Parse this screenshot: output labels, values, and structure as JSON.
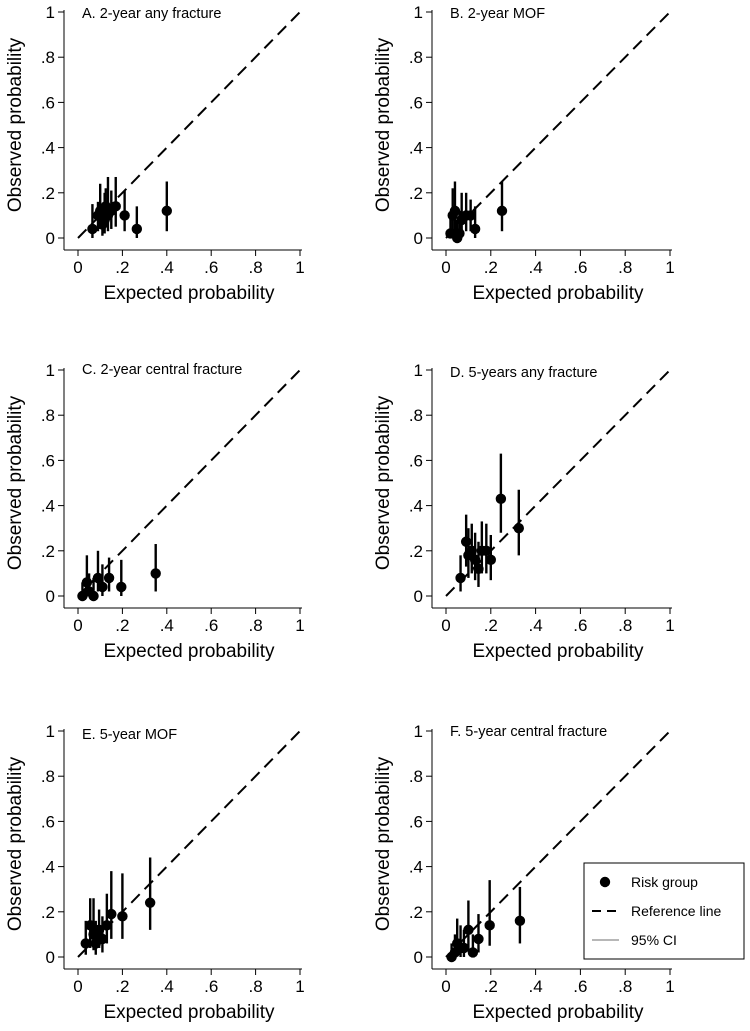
{
  "chart_data": [
    {
      "type": "scatter",
      "panel": "A",
      "title": "A. 2-year any fracture",
      "xlabel": "Expected probability",
      "ylabel": "Observed probability",
      "xlim": [
        0,
        1
      ],
      "ylim": [
        0,
        1
      ],
      "xticks": [
        {
          "v": 0,
          "label": "0"
        },
        {
          "v": 0.2,
          "label": ".2"
        },
        {
          "v": 0.4,
          "label": ".4"
        },
        {
          "v": 0.6,
          "label": ".6"
        },
        {
          "v": 0.8,
          "label": ".8"
        },
        {
          "v": 1,
          "label": "1"
        }
      ],
      "yticks": [
        {
          "v": 0,
          "label": "0"
        },
        {
          "v": 0.2,
          "label": ".2"
        },
        {
          "v": 0.4,
          "label": ".4"
        },
        {
          "v": 0.6,
          "label": ".6"
        },
        {
          "v": 0.8,
          "label": ".8"
        },
        {
          "v": 1,
          "label": "1"
        }
      ],
      "points": [
        {
          "x": 0.065,
          "y": 0.04,
          "lo": 0.0,
          "hi": 0.15
        },
        {
          "x": 0.09,
          "y": 0.1,
          "lo": 0.03,
          "hi": 0.16
        },
        {
          "x": 0.1,
          "y": 0.12,
          "lo": 0.04,
          "hi": 0.24
        },
        {
          "x": 0.11,
          "y": 0.06,
          "lo": 0.01,
          "hi": 0.14
        },
        {
          "x": 0.12,
          "y": 0.08,
          "lo": 0.02,
          "hi": 0.2
        },
        {
          "x": 0.125,
          "y": 0.14,
          "lo": 0.05,
          "hi": 0.22
        },
        {
          "x": 0.135,
          "y": 0.1,
          "lo": 0.03,
          "hi": 0.27
        },
        {
          "x": 0.15,
          "y": 0.12,
          "lo": 0.04,
          "hi": 0.21
        },
        {
          "x": 0.17,
          "y": 0.14,
          "lo": 0.05,
          "hi": 0.27
        },
        {
          "x": 0.21,
          "y": 0.1,
          "lo": 0.03,
          "hi": 0.21
        },
        {
          "x": 0.265,
          "y": 0.04,
          "lo": 0.0,
          "hi": 0.14
        },
        {
          "x": 0.4,
          "y": 0.12,
          "lo": 0.03,
          "hi": 0.25
        }
      ]
    },
    {
      "type": "scatter",
      "panel": "B",
      "title": "B. 2-year MOF",
      "xlabel": "Expected probability",
      "ylabel": "Observed probability",
      "xlim": [
        0,
        1
      ],
      "ylim": [
        0,
        1
      ],
      "xticks": [
        {
          "v": 0,
          "label": "0"
        },
        {
          "v": 0.2,
          "label": ".2"
        },
        {
          "v": 0.4,
          "label": ".4"
        },
        {
          "v": 0.6,
          "label": ".6"
        },
        {
          "v": 0.8,
          "label": ".8"
        },
        {
          "v": 1,
          "label": "1"
        }
      ],
      "yticks": [
        {
          "v": 0,
          "label": "0"
        },
        {
          "v": 0.2,
          "label": ".2"
        },
        {
          "v": 0.4,
          "label": ".4"
        },
        {
          "v": 0.6,
          "label": ".6"
        },
        {
          "v": 0.8,
          "label": ".8"
        },
        {
          "v": 1,
          "label": "1"
        }
      ],
      "points": [
        {
          "x": 0.02,
          "y": 0.02,
          "lo": 0.0,
          "hi": 0.1
        },
        {
          "x": 0.03,
          "y": 0.1,
          "lo": 0.02,
          "hi": 0.22
        },
        {
          "x": 0.04,
          "y": 0.12,
          "lo": 0.03,
          "hi": 0.25
        },
        {
          "x": 0.05,
          "y": 0.0,
          "lo": 0.0,
          "hi": 0.08
        },
        {
          "x": 0.06,
          "y": 0.02,
          "lo": 0.0,
          "hi": 0.12
        },
        {
          "x": 0.07,
          "y": 0.08,
          "lo": 0.02,
          "hi": 0.2
        },
        {
          "x": 0.09,
          "y": 0.1,
          "lo": 0.03,
          "hi": 0.2
        },
        {
          "x": 0.11,
          "y": 0.1,
          "lo": 0.03,
          "hi": 0.17
        },
        {
          "x": 0.13,
          "y": 0.04,
          "lo": 0.0,
          "hi": 0.14
        },
        {
          "x": 0.25,
          "y": 0.12,
          "lo": 0.03,
          "hi": 0.25
        }
      ]
    },
    {
      "type": "scatter",
      "panel": "C",
      "title": "C. 2-year central fracture",
      "xlabel": "Expected probability",
      "ylabel": "Observed probability",
      "xlim": [
        0,
        1
      ],
      "ylim": [
        0,
        1
      ],
      "xticks": [
        {
          "v": 0,
          "label": "0"
        },
        {
          "v": 0.2,
          "label": ".2"
        },
        {
          "v": 0.4,
          "label": ".4"
        },
        {
          "v": 0.6,
          "label": ".6"
        },
        {
          "v": 0.8,
          "label": ".8"
        },
        {
          "v": 1,
          "label": "1"
        }
      ],
      "yticks": [
        {
          "v": 0,
          "label": "0"
        },
        {
          "v": 0.2,
          "label": ".2"
        },
        {
          "v": 0.4,
          "label": ".4"
        },
        {
          "v": 0.6,
          "label": ".6"
        },
        {
          "v": 0.8,
          "label": ".8"
        },
        {
          "v": 1,
          "label": "1"
        }
      ],
      "points": [
        {
          "x": 0.02,
          "y": 0.0,
          "lo": 0.0,
          "hi": 0.06
        },
        {
          "x": 0.04,
          "y": 0.06,
          "lo": 0.01,
          "hi": 0.18
        },
        {
          "x": 0.05,
          "y": 0.02,
          "lo": 0.0,
          "hi": 0.1
        },
        {
          "x": 0.07,
          "y": 0.0,
          "lo": 0.0,
          "hi": 0.08
        },
        {
          "x": 0.09,
          "y": 0.08,
          "lo": 0.02,
          "hi": 0.2
        },
        {
          "x": 0.11,
          "y": 0.04,
          "lo": 0.0,
          "hi": 0.14
        },
        {
          "x": 0.14,
          "y": 0.08,
          "lo": 0.02,
          "hi": 0.17
        },
        {
          "x": 0.195,
          "y": 0.04,
          "lo": 0.0,
          "hi": 0.16
        },
        {
          "x": 0.35,
          "y": 0.1,
          "lo": 0.02,
          "hi": 0.23
        }
      ]
    },
    {
      "type": "scatter",
      "panel": "D",
      "title": "D. 5-years any fracture",
      "xlabel": "Expected probability",
      "ylabel": "Observed probability",
      "xlim": [
        0,
        1
      ],
      "ylim": [
        0,
        1
      ],
      "xticks": [
        {
          "v": 0,
          "label": "0"
        },
        {
          "v": 0.2,
          "label": ".2"
        },
        {
          "v": 0.4,
          "label": ".4"
        },
        {
          "v": 0.6,
          "label": ".6"
        },
        {
          "v": 0.8,
          "label": ".8"
        },
        {
          "v": 1,
          "label": "1"
        }
      ],
      "yticks": [
        {
          "v": 0,
          "label": "0"
        },
        {
          "v": 0.2,
          "label": ".2"
        },
        {
          "v": 0.4,
          "label": ".4"
        },
        {
          "v": 0.6,
          "label": ".6"
        },
        {
          "v": 0.8,
          "label": ".8"
        },
        {
          "v": 1,
          "label": "1"
        }
      ],
      "points": [
        {
          "x": 0.065,
          "y": 0.08,
          "lo": 0.02,
          "hi": 0.18
        },
        {
          "x": 0.09,
          "y": 0.24,
          "lo": 0.13,
          "hi": 0.36
        },
        {
          "x": 0.1,
          "y": 0.18,
          "lo": 0.08,
          "hi": 0.3
        },
        {
          "x": 0.115,
          "y": 0.2,
          "lo": 0.1,
          "hi": 0.32
        },
        {
          "x": 0.13,
          "y": 0.16,
          "lo": 0.07,
          "hi": 0.28
        },
        {
          "x": 0.145,
          "y": 0.12,
          "lo": 0.04,
          "hi": 0.24
        },
        {
          "x": 0.16,
          "y": 0.2,
          "lo": 0.1,
          "hi": 0.33
        },
        {
          "x": 0.18,
          "y": 0.2,
          "lo": 0.1,
          "hi": 0.32
        },
        {
          "x": 0.2,
          "y": 0.16,
          "lo": 0.07,
          "hi": 0.27
        },
        {
          "x": 0.245,
          "y": 0.43,
          "lo": 0.28,
          "hi": 0.63
        },
        {
          "x": 0.325,
          "y": 0.3,
          "lo": 0.18,
          "hi": 0.47
        }
      ]
    },
    {
      "type": "scatter",
      "panel": "E",
      "title": "E. 5-year MOF",
      "xlabel": "Expected probability",
      "ylabel": "Observed probability",
      "xlim": [
        0,
        1
      ],
      "ylim": [
        0,
        1
      ],
      "xticks": [
        {
          "v": 0,
          "label": "0"
        },
        {
          "v": 0.2,
          "label": ".2"
        },
        {
          "v": 0.4,
          "label": ".4"
        },
        {
          "v": 0.6,
          "label": ".6"
        },
        {
          "v": 0.8,
          "label": ".8"
        },
        {
          "v": 1,
          "label": "1"
        }
      ],
      "yticks": [
        {
          "v": 0,
          "label": "0"
        },
        {
          "v": 0.2,
          "label": ".2"
        },
        {
          "v": 0.4,
          "label": ".4"
        },
        {
          "v": 0.6,
          "label": ".6"
        },
        {
          "v": 0.8,
          "label": ".8"
        },
        {
          "v": 1,
          "label": "1"
        }
      ],
      "points": [
        {
          "x": 0.035,
          "y": 0.06,
          "lo": 0.01,
          "hi": 0.16
        },
        {
          "x": 0.055,
          "y": 0.14,
          "lo": 0.04,
          "hi": 0.26
        },
        {
          "x": 0.07,
          "y": 0.1,
          "lo": 0.03,
          "hi": 0.26
        },
        {
          "x": 0.08,
          "y": 0.06,
          "lo": 0.01,
          "hi": 0.16
        },
        {
          "x": 0.095,
          "y": 0.12,
          "lo": 0.04,
          "hi": 0.21
        },
        {
          "x": 0.11,
          "y": 0.08,
          "lo": 0.02,
          "hi": 0.18
        },
        {
          "x": 0.13,
          "y": 0.14,
          "lo": 0.06,
          "hi": 0.28
        },
        {
          "x": 0.15,
          "y": 0.19,
          "lo": 0.08,
          "hi": 0.38
        },
        {
          "x": 0.2,
          "y": 0.18,
          "lo": 0.08,
          "hi": 0.37
        },
        {
          "x": 0.325,
          "y": 0.24,
          "lo": 0.12,
          "hi": 0.44
        }
      ]
    },
    {
      "type": "scatter",
      "panel": "F",
      "title": "F. 5-year central fracture",
      "xlabel": "Expected probability",
      "ylabel": "Observed probability",
      "xlim": [
        0,
        1
      ],
      "ylim": [
        0,
        1
      ],
      "xticks": [
        {
          "v": 0,
          "label": "0"
        },
        {
          "v": 0.2,
          "label": ".2"
        },
        {
          "v": 0.4,
          "label": ".4"
        },
        {
          "v": 0.6,
          "label": ".6"
        },
        {
          "v": 0.8,
          "label": ".8"
        },
        {
          "v": 1,
          "label": "1"
        }
      ],
      "yticks": [
        {
          "v": 0,
          "label": "0"
        },
        {
          "v": 0.2,
          "label": ".2"
        },
        {
          "v": 0.4,
          "label": ".4"
        },
        {
          "v": 0.6,
          "label": ".6"
        },
        {
          "v": 0.8,
          "label": ".8"
        },
        {
          "v": 1,
          "label": "1"
        }
      ],
      "points": [
        {
          "x": 0.025,
          "y": 0.0,
          "lo": 0.0,
          "hi": 0.06
        },
        {
          "x": 0.04,
          "y": 0.02,
          "lo": 0.0,
          "hi": 0.1
        },
        {
          "x": 0.05,
          "y": 0.06,
          "lo": 0.01,
          "hi": 0.17
        },
        {
          "x": 0.065,
          "y": 0.04,
          "lo": 0.0,
          "hi": 0.14
        },
        {
          "x": 0.08,
          "y": 0.04,
          "lo": 0.0,
          "hi": 0.12
        },
        {
          "x": 0.1,
          "y": 0.12,
          "lo": 0.03,
          "hi": 0.25
        },
        {
          "x": 0.12,
          "y": 0.02,
          "lo": 0.0,
          "hi": 0.1
        },
        {
          "x": 0.145,
          "y": 0.08,
          "lo": 0.02,
          "hi": 0.19
        },
        {
          "x": 0.195,
          "y": 0.14,
          "lo": 0.05,
          "hi": 0.34
        },
        {
          "x": 0.33,
          "y": 0.16,
          "lo": 0.06,
          "hi": 0.31
        }
      ]
    }
  ],
  "legend": {
    "placement": "bottom-right",
    "entries": [
      {
        "key": "risk-group",
        "label": "Risk group",
        "symbol": "marker"
      },
      {
        "key": "reference-line",
        "label": "Reference line",
        "symbol": "dashed"
      },
      {
        "key": "ci",
        "label": "95% CI",
        "symbol": "thin-line"
      }
    ]
  },
  "colors": {
    "marker": "#000000",
    "reference_line": "#000000",
    "ci_legend": "#8c8c8c",
    "background": "#ffffff"
  }
}
